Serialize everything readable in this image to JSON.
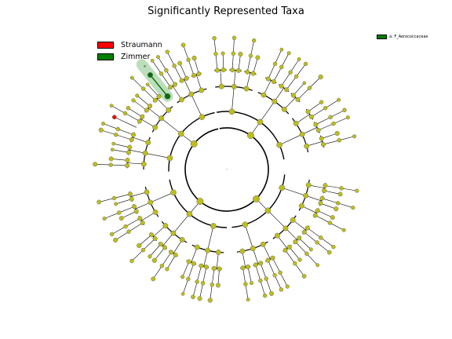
{
  "title": "Significantly Represented Taxa",
  "legend": [
    {
      "label": "Straumann",
      "color": "#ff0000"
    },
    {
      "label": "Zimmer",
      "color": "#008000"
    }
  ],
  "side_legend": {
    "label": "a: F_Aerococcaceae",
    "color": "#008000"
  },
  "highlight_label": "a",
  "colors": {
    "node": "#bdbd1e",
    "straumann": "#ff0000",
    "zimmer": "#0a6e0a",
    "highlight": "#8fc98f"
  }
}
